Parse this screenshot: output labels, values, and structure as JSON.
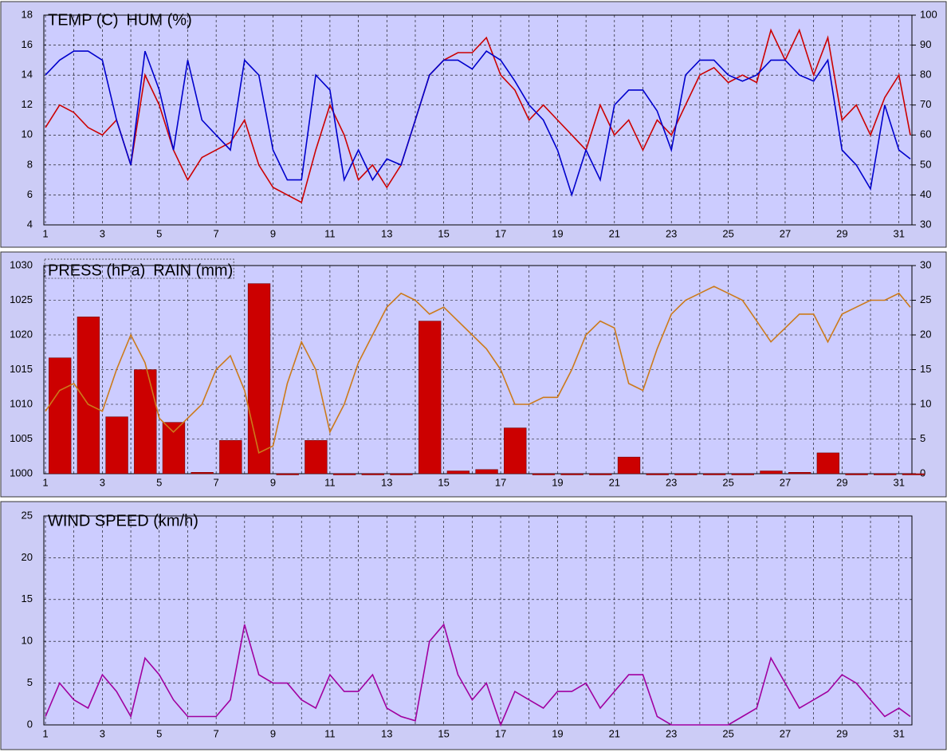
{
  "chart_data": [
    {
      "type": "line",
      "x": [
        1,
        1.5,
        2,
        2.5,
        3,
        3.5,
        4,
        4.5,
        5,
        5.5,
        6,
        6.5,
        7,
        7.5,
        8,
        8.5,
        9,
        9.5,
        10,
        10.5,
        11,
        11.5,
        12,
        12.5,
        13,
        13.5,
        14,
        14.5,
        15,
        15.5,
        16,
        16.5,
        17,
        17.5,
        18,
        18.5,
        19,
        19.5,
        20,
        20.5,
        21,
        21.5,
        22,
        22.5,
        23,
        23.5,
        24,
        24.5,
        25,
        25.5,
        26,
        26.5,
        27,
        27.5,
        28,
        28.5,
        29,
        29.5,
        30,
        30.5,
        31,
        31.4
      ],
      "series": [
        {
          "name": "TEMP (C)",
          "color": "#cc0000",
          "values": [
            10.5,
            12,
            11.5,
            10.5,
            10,
            11,
            8,
            14,
            12,
            9,
            7,
            8.5,
            9,
            9.5,
            11,
            8,
            6.5,
            6,
            5.5,
            9,
            12,
            10,
            7,
            8,
            6.5,
            8,
            11,
            14,
            15,
            15.5,
            15.5,
            16.5,
            14,
            13,
            11,
            12,
            11,
            10,
            9,
            12,
            10,
            11,
            9,
            11,
            10,
            12,
            14,
            14.5,
            13.5,
            14,
            13.5,
            17,
            15,
            17,
            14,
            16.5,
            11,
            12,
            10,
            12.5,
            14,
            10
          ]
        },
        {
          "name": "HUM (%)",
          "color": "#0000cc",
          "axis": "y2",
          "values": [
            80,
            85,
            88,
            88,
            85,
            65,
            50,
            88,
            75,
            55,
            85,
            65,
            60,
            55,
            85,
            80,
            55,
            45,
            45,
            80,
            75,
            45,
            55,
            45,
            52,
            50,
            65,
            80,
            85,
            85,
            82,
            88,
            85,
            78,
            70,
            65,
            55,
            40,
            55,
            45,
            70,
            75,
            75,
            68,
            55,
            80,
            85,
            85,
            80,
            78,
            80,
            85,
            85,
            80,
            78,
            85,
            55,
            50,
            42,
            70,
            55,
            52
          ]
        }
      ],
      "xlim": [
        1,
        31.4
      ],
      "xticks": [
        1,
        3,
        5,
        7,
        9,
        11,
        13,
        15,
        17,
        19,
        21,
        23,
        25,
        27,
        29,
        31
      ],
      "ylim": [
        4,
        18
      ],
      "yticks": [
        4,
        6,
        8,
        10,
        12,
        14,
        16,
        18
      ],
      "y2lim": [
        30,
        100
      ],
      "y2ticks": [
        30,
        40,
        50,
        60,
        70,
        80,
        90,
        100
      ],
      "grid": true
    },
    {
      "type": "line",
      "x": [
        1,
        1.5,
        2,
        2.5,
        3,
        3.5,
        4,
        4.5,
        5,
        5.5,
        6,
        6.5,
        7,
        7.5,
        8,
        8.5,
        9,
        9.5,
        10,
        10.5,
        11,
        11.5,
        12,
        12.5,
        13,
        13.5,
        14,
        14.5,
        15,
        15.5,
        16,
        16.5,
        17,
        17.5,
        18,
        18.5,
        19,
        19.5,
        20,
        20.5,
        21,
        21.5,
        22,
        22.5,
        23,
        23.5,
        24,
        24.5,
        25,
        25.5,
        26,
        26.5,
        27,
        27.5,
        28,
        28.5,
        29,
        29.5,
        30,
        30.5,
        31,
        31.4
      ],
      "series": [
        {
          "name": "PRESS (hPa)",
          "color": "#cc7a1a",
          "values": [
            1009,
            1012,
            1013,
            1010,
            1009,
            1015,
            1020,
            1016,
            1008,
            1006,
            1008,
            1010,
            1015,
            1017,
            1012,
            1003,
            1004,
            1013,
            1019,
            1015,
            1006,
            1010,
            1016,
            1020,
            1024,
            1026,
            1025,
            1023,
            1024,
            1022,
            1020,
            1018,
            1015,
            1010,
            1010,
            1011,
            1011,
            1015,
            1020,
            1022,
            1021,
            1013,
            1012,
            1018,
            1023,
            1025,
            1026,
            1027,
            1026,
            1025,
            1022,
            1019,
            1021,
            1023,
            1023,
            1019,
            1023,
            1024,
            1025,
            1025,
            1026,
            1024
          ]
        },
        {
          "name": "RAIN (mm)",
          "color": "#cc0000",
          "type": "bar",
          "axis": "y2",
          "x": [
            1,
            2,
            3,
            4,
            5,
            6,
            7,
            8,
            9,
            10,
            11,
            12,
            13,
            14,
            15,
            16,
            17,
            18,
            19,
            20,
            21,
            22,
            23,
            24,
            25,
            26,
            27,
            28,
            29,
            30,
            31
          ],
          "values": [
            16.7,
            22.6,
            8.2,
            15,
            7.4,
            0.2,
            4.8,
            27.4,
            0,
            4.8,
            0,
            0,
            0,
            22,
            0.4,
            0.6,
            6.6,
            0,
            0,
            0,
            2.4,
            0,
            0,
            0,
            0,
            0.4,
            0.2,
            3,
            0,
            0,
            0
          ]
        }
      ],
      "xlim": [
        1,
        31.4
      ],
      "xticks": [
        1,
        3,
        5,
        7,
        9,
        11,
        13,
        15,
        17,
        19,
        21,
        23,
        25,
        27,
        29,
        31
      ],
      "ylim": [
        1000,
        1030
      ],
      "yticks": [
        1000,
        1005,
        1010,
        1015,
        1020,
        1025,
        1030
      ],
      "y2lim": [
        0,
        30
      ],
      "y2ticks": [
        0,
        5,
        10,
        15,
        20,
        25,
        30
      ],
      "grid": true
    },
    {
      "type": "line",
      "x": [
        1,
        1.5,
        2,
        2.5,
        3,
        3.5,
        4,
        4.5,
        5,
        5.5,
        6,
        6.5,
        7,
        7.5,
        8,
        8.5,
        9,
        9.5,
        10,
        10.5,
        11,
        11.5,
        12,
        12.5,
        13,
        13.5,
        14,
        14.5,
        15,
        15.5,
        16,
        16.5,
        17,
        17.5,
        18,
        18.5,
        19,
        19.5,
        20,
        20.5,
        21,
        21.5,
        22,
        22.5,
        23,
        23.5,
        24,
        24.5,
        25,
        25.5,
        26,
        26.5,
        27,
        27.5,
        28,
        28.5,
        29,
        29.5,
        30,
        30.5,
        31,
        31.4
      ],
      "series": [
        {
          "name": "WIND SPEED (km/h)",
          "color": "#a000a0",
          "values": [
            1,
            5,
            3,
            2,
            6,
            4,
            1,
            8,
            6,
            3,
            1,
            1,
            1,
            3,
            12,
            6,
            5,
            5,
            3,
            2,
            6,
            4,
            4,
            6,
            2,
            1,
            0.5,
            10,
            12,
            6,
            3,
            5,
            0,
            4,
            3,
            2,
            4,
            4,
            5,
            2,
            4,
            6,
            6,
            1,
            0,
            0,
            0,
            0,
            0,
            1,
            2,
            8,
            5,
            2,
            3,
            4,
            6,
            5,
            3,
            1,
            2,
            1
          ]
        }
      ],
      "xlim": [
        1,
        31.4
      ],
      "xticks": [
        1,
        3,
        5,
        7,
        9,
        11,
        13,
        15,
        17,
        19,
        21,
        23,
        25,
        27,
        29,
        31
      ],
      "ylim": [
        0,
        25
      ],
      "yticks": [
        0,
        5,
        10,
        15,
        20,
        25
      ],
      "grid": true
    }
  ]
}
